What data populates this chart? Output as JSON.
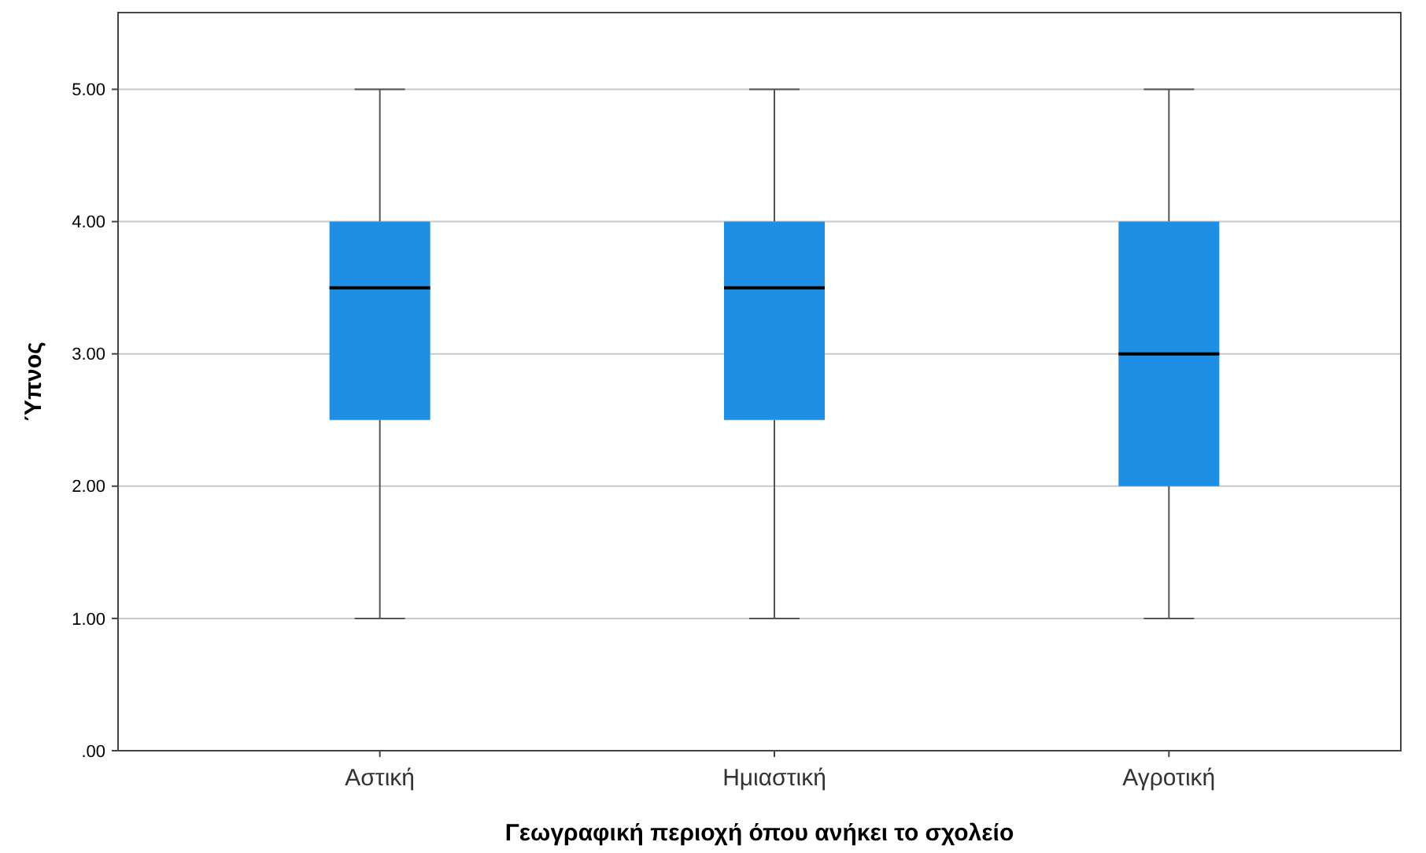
{
  "chart_data": {
    "type": "box",
    "xlabel": "Γεωγραφική περιοχή όπου ανήκει το σχολείο",
    "ylabel": "Ύπνος",
    "categories": [
      "Αστική",
      "Ημιαστική",
      "Αγροτική"
    ],
    "color": "#1f8fe6",
    "boxes": [
      {
        "low": 1,
        "q1": 2.5,
        "median": 3.5,
        "q3": 4,
        "high": 5
      },
      {
        "low": 1,
        "q1": 2.5,
        "median": 3.5,
        "q3": 4,
        "high": 5
      },
      {
        "low": 1,
        "q1": 2,
        "median": 3,
        "q3": 4,
        "high": 5
      }
    ],
    "ylim": [
      0,
      5.58
    ],
    "yticks": [
      {
        "value": 0,
        "label": ".00"
      },
      {
        "value": 1,
        "label": "1.00"
      },
      {
        "value": 2,
        "label": "2.00"
      },
      {
        "value": 3,
        "label": "3.00"
      },
      {
        "value": 4,
        "label": "4.00"
      },
      {
        "value": 5,
        "label": "5.00"
      }
    ],
    "grid": "y"
  }
}
